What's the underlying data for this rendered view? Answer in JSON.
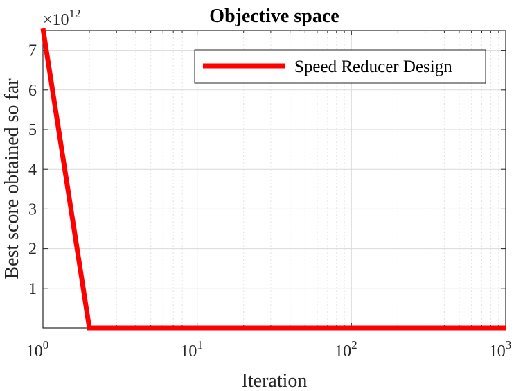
{
  "chart_data": {
    "type": "line",
    "title": "Objective space",
    "xlabel": "Iteration",
    "ylabel": "Best score obtained so far",
    "x_scale": "log",
    "xlim": [
      1,
      1000
    ],
    "ylim": [
      0,
      7.5
    ],
    "y_multiplier_base": "10",
    "y_multiplier_exp": "12",
    "x_ticks": [
      {
        "base": "10",
        "exp": "0",
        "value": 1
      },
      {
        "base": "10",
        "exp": "1",
        "value": 10
      },
      {
        "base": "10",
        "exp": "2",
        "value": 100
      },
      {
        "base": "10",
        "exp": "3",
        "value": 1000
      }
    ],
    "y_ticks": [
      1,
      2,
      3,
      4,
      5,
      6,
      7
    ],
    "grid": true,
    "legend_position": "top-right",
    "series": [
      {
        "name": "Speed Reducer Design",
        "color": "#ff0000",
        "x": [
          1,
          2,
          1000
        ],
        "y": [
          7.55,
          0.0,
          0.0
        ]
      }
    ]
  }
}
